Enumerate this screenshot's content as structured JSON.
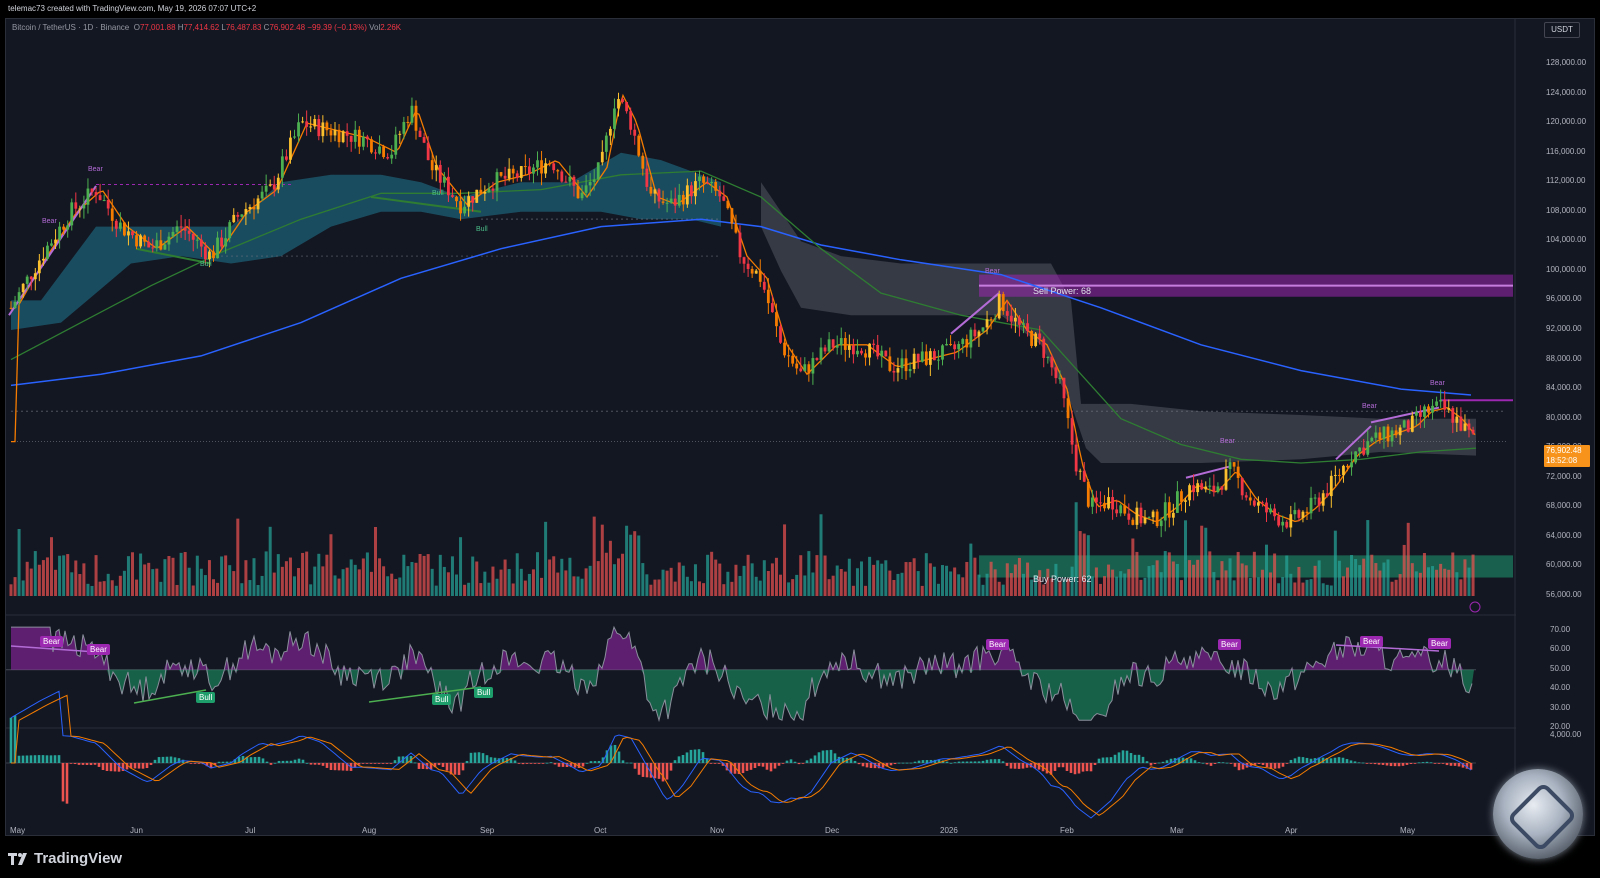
{
  "header": {
    "credit": "telemac73 created with TradingView.com, May 19, 2026 07:07 UTC+2",
    "symbol": "Bitcoin / TetherUS · 1D · Binance",
    "o_label": "O",
    "o": "77,001.88",
    "h_label": "H",
    "h": "77,414.62",
    "l_label": "L",
    "l": "76,487.83",
    "c_label": "C",
    "c": "76,902.48",
    "change": "−99.39 (−0.13%)",
    "vol_label": "Vol",
    "vol": "2.26K"
  },
  "currency": "USDT",
  "current_price": {
    "price": "76,902.48",
    "countdown": "18:52:08"
  },
  "price_axis": [
    "128,000.00",
    "124,000.00",
    "120,000.00",
    "116,000.00",
    "112,000.00",
    "108,000.00",
    "104,000.00",
    "100,000.00",
    "96,000.00",
    "92,000.00",
    "88,000.00",
    "84,000.00",
    "80,000.00",
    "76,000.00",
    "72,000.00",
    "68,000.00",
    "64,000.00",
    "60,000.00",
    "56,000.00"
  ],
  "rsi_axis": [
    "70.00",
    "60.00",
    "50.00",
    "40.00",
    "30.00",
    "20.00"
  ],
  "macd_axis": [
    "4,000.00"
  ],
  "months": [
    "May",
    "Jun",
    "Jul",
    "Aug",
    "Sep",
    "Oct",
    "Nov",
    "Dec",
    "2026",
    "Feb",
    "Mar",
    "Apr",
    "May"
  ],
  "zones": {
    "sell": "Sell Power: 68",
    "buy": "Buy Power: 62"
  },
  "price_signals": {
    "bear": "Bear",
    "bull": "Bull"
  },
  "rsi_flags": {
    "bear": "Bear",
    "bull": "Bull"
  },
  "brand": "TradingView",
  "colors": {
    "up": "#26a69a",
    "down": "#ef5350",
    "up_bright": "#4caf50",
    "down_bright": "#f23645",
    "yellow": "#fbc02d",
    "ma_fast": "#f57c00",
    "ma_mid": "#2e7d32",
    "ma_slow": "#2962ff",
    "cloud": "#1e5f74",
    "purple": "#9c27b0",
    "current": "#f7931a"
  },
  "chart_data": {
    "type": "candlestick",
    "symbol": "BTCUSDT",
    "timeframe": "1D",
    "x": [
      "2025-05",
      "2025-06",
      "2025-07",
      "2025-08",
      "2025-09",
      "2025-10",
      "2025-11",
      "2025-12",
      "2026-01",
      "2026-02",
      "2026-03",
      "2026-04",
      "2026-05"
    ],
    "close_approx": [
      104000,
      107000,
      117500,
      110000,
      112000,
      121000,
      93000,
      87500,
      95000,
      68000,
      70500,
      76000,
      76902.48
    ],
    "high_approx": [
      111500,
      110000,
      123000,
      124500,
      117000,
      126000,
      110000,
      94500,
      97500,
      90000,
      74500,
      79500,
      82500
    ],
    "low_approx": [
      93000,
      100000,
      105000,
      108000,
      107000,
      102000,
      80500,
      84000,
      86500,
      60000,
      63000,
      65500,
      75500
    ],
    "ylim": [
      54000,
      130000
    ],
    "rsi_ylim": [
      20,
      70
    ],
    "last": {
      "open": 77001.88,
      "high": 77414.62,
      "low": 76487.83,
      "close": 76902.48,
      "change": -99.39,
      "change_pct": -0.13
    }
  }
}
